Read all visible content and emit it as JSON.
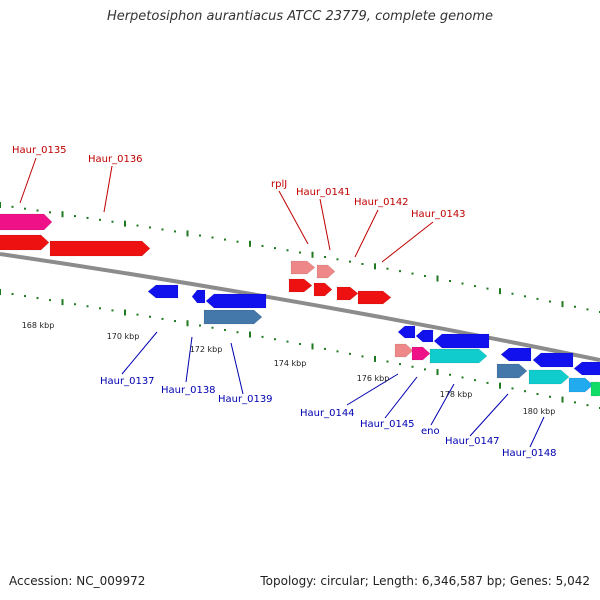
{
  "title": "Herpetosiphon aurantiacus ATCC 23779, complete genome",
  "footer": {
    "accession": "Accession: NC_009972",
    "summary": "Topology: circular; Length: 6,346,587 bp; Genes: 5,042"
  },
  "colors": {
    "backbone": "#8c8c8c",
    "tick": "#1e7a1e",
    "upper_label": "#c00000",
    "lower_label": "#0000b0",
    "red": "#ee1111",
    "pink": "#ee8888",
    "magenta": "#ee1188",
    "blue": "#1111ee",
    "steel": "#4477aa",
    "cyan": "#11cccc",
    "skyblue": "#22aaee",
    "green": "#11dd66"
  },
  "scale_labels": [
    "168 kbp",
    "170 kbp",
    "172 kbp",
    "174 kbp",
    "176 kbp",
    "178 kbp",
    "180 kbp"
  ],
  "gene_labels_upper": [
    "Haur_0135",
    "Haur_0136",
    "rplJ",
    "Haur_0141",
    "Haur_0142",
    "Haur_0143"
  ],
  "gene_labels_lower": [
    "Haur_0137",
    "Haur_0138",
    "Haur_0139",
    "Haur_0144",
    "Haur_0145",
    "eno",
    "Haur_0147",
    "Haur_0148"
  ]
}
